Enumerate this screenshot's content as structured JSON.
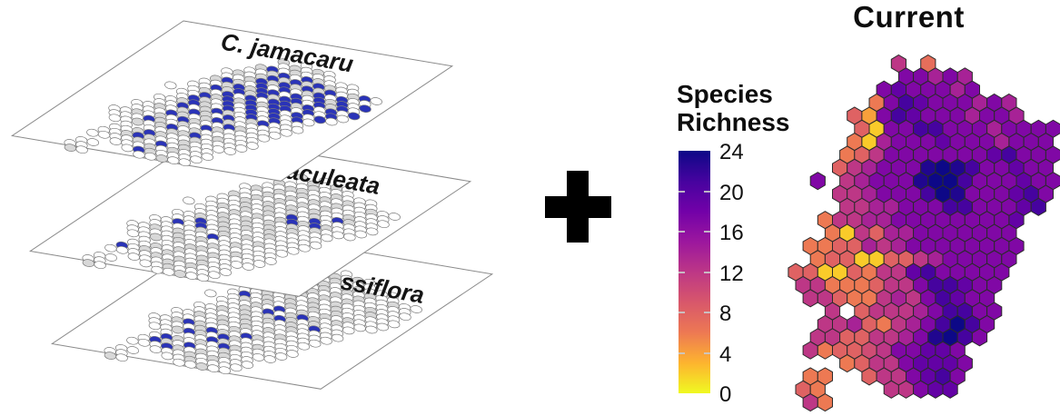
{
  "background_color": "#ffffff",
  "title_current": "Current",
  "plus_symbol": "+",
  "legend": {
    "title_line1": "Species",
    "title_line2": "Richness",
    "ticks": [
      "24",
      "20",
      "16",
      "12",
      "8",
      "4",
      "0"
    ]
  },
  "colormap": {
    "description": "plasma colormap: dark indigo = high richness (24), yellow = low (0)",
    "anchors": [
      [
        0.0,
        "#0d0887"
      ],
      [
        0.125,
        "#46039f"
      ],
      [
        0.25,
        "#7201a8"
      ],
      [
        0.375,
        "#9c179e"
      ],
      [
        0.5,
        "#bd3786"
      ],
      [
        0.625,
        "#d8576b"
      ],
      [
        0.75,
        "#ed7953"
      ],
      [
        0.875,
        "#fdb42f"
      ],
      [
        1.0,
        "#f0f921"
      ]
    ]
  },
  "left_stack": {
    "colors": {
      "occurrence": "#2a33b8",
      "cell_white": "#ffffff",
      "cell_gray": "#d8d8d8",
      "cell_stroke": "#7a7a7a",
      "panel_fill": "#ffffff",
      "panel_stroke": "#8a8a8a"
    },
    "gray_cells": [
      [
        0,
        7
      ],
      [
        1,
        8
      ],
      [
        1,
        10
      ],
      [
        2,
        6
      ],
      [
        2,
        9
      ],
      [
        3,
        7
      ],
      [
        3,
        8
      ],
      [
        3,
        11
      ],
      [
        4,
        5
      ],
      [
        4,
        7
      ],
      [
        4,
        9
      ],
      [
        4,
        11
      ],
      [
        4,
        13
      ],
      [
        5,
        6
      ],
      [
        5,
        8
      ],
      [
        5,
        10
      ],
      [
        5,
        12
      ],
      [
        5,
        15
      ],
      [
        6,
        4
      ],
      [
        6,
        6
      ],
      [
        6,
        8
      ],
      [
        6,
        10
      ],
      [
        6,
        12
      ],
      [
        7,
        5
      ],
      [
        7,
        7
      ],
      [
        7,
        9
      ],
      [
        7,
        11
      ],
      [
        7,
        14
      ],
      [
        8,
        6
      ],
      [
        8,
        8
      ],
      [
        8,
        10
      ],
      [
        8,
        12
      ],
      [
        8,
        15
      ],
      [
        9,
        4
      ],
      [
        9,
        6
      ],
      [
        9,
        8
      ],
      [
        9,
        10
      ],
      [
        9,
        12
      ],
      [
        10,
        6
      ],
      [
        10,
        8
      ],
      [
        10,
        10
      ],
      [
        10,
        12
      ],
      [
        10,
        14
      ],
      [
        11,
        5
      ],
      [
        11,
        7
      ],
      [
        11,
        9
      ],
      [
        11,
        11
      ],
      [
        11,
        13
      ],
      [
        12,
        4
      ],
      [
        12,
        6
      ],
      [
        12,
        8
      ],
      [
        12,
        10
      ],
      [
        12,
        12
      ],
      [
        13,
        6
      ],
      [
        13,
        8
      ],
      [
        13,
        10
      ],
      [
        14,
        3
      ],
      [
        14,
        5
      ],
      [
        14,
        7
      ],
      [
        14,
        11
      ],
      [
        15,
        5
      ],
      [
        15,
        7
      ],
      [
        15,
        9
      ],
      [
        16,
        2
      ],
      [
        16,
        4
      ],
      [
        16,
        7
      ],
      [
        16,
        11
      ],
      [
        17,
        4
      ],
      [
        17,
        6
      ],
      [
        17,
        9
      ],
      [
        18,
        3
      ],
      [
        18,
        5
      ],
      [
        18,
        8
      ],
      [
        19,
        6
      ],
      [
        19,
        7
      ],
      [
        19,
        10
      ],
      [
        20,
        4
      ],
      [
        20,
        6
      ],
      [
        20,
        9
      ],
      [
        21,
        3
      ],
      [
        21,
        5
      ],
      [
        21,
        8
      ],
      [
        22,
        5
      ],
      [
        22,
        7
      ],
      [
        22,
        9
      ],
      [
        23,
        6
      ],
      [
        23,
        8
      ],
      [
        24,
        7
      ],
      [
        25,
        8
      ],
      [
        26,
        1
      ]
    ],
    "panels": [
      {
        "label": "C. jamacaru",
        "blue_cells": [
          [
            2,
            7
          ],
          [
            3,
            8
          ],
          [
            3,
            10
          ],
          [
            4,
            8
          ],
          [
            4,
            10
          ],
          [
            4,
            12
          ],
          [
            5,
            7
          ],
          [
            5,
            9
          ],
          [
            5,
            11
          ],
          [
            5,
            13
          ],
          [
            5,
            16
          ],
          [
            6,
            5
          ],
          [
            6,
            8
          ],
          [
            6,
            10
          ],
          [
            6,
            13
          ],
          [
            6,
            15
          ],
          [
            7,
            6
          ],
          [
            7,
            8
          ],
          [
            7,
            9
          ],
          [
            7,
            11
          ],
          [
            7,
            13
          ],
          [
            7,
            15
          ],
          [
            7,
            17
          ],
          [
            8,
            5
          ],
          [
            8,
            7
          ],
          [
            8,
            9
          ],
          [
            8,
            11
          ],
          [
            8,
            12
          ],
          [
            8,
            14
          ],
          [
            8,
            16
          ],
          [
            9,
            6
          ],
          [
            9,
            8
          ],
          [
            9,
            10
          ],
          [
            9,
            11
          ],
          [
            9,
            13
          ],
          [
            9,
            15
          ],
          [
            9,
            17
          ],
          [
            10,
            5
          ],
          [
            10,
            7
          ],
          [
            10,
            9
          ],
          [
            10,
            11
          ],
          [
            10,
            12
          ],
          [
            10,
            14
          ],
          [
            10,
            16
          ],
          [
            11,
            4
          ],
          [
            11,
            7
          ],
          [
            11,
            9
          ],
          [
            11,
            11
          ],
          [
            11,
            13
          ],
          [
            11,
            15
          ],
          [
            12,
            5
          ],
          [
            12,
            8
          ],
          [
            12,
            10
          ],
          [
            12,
            12
          ],
          [
            12,
            14
          ],
          [
            13,
            4
          ],
          [
            13,
            7
          ],
          [
            13,
            10
          ],
          [
            13,
            12
          ],
          [
            14,
            6
          ],
          [
            14,
            9
          ],
          [
            14,
            12
          ],
          [
            15,
            4
          ],
          [
            15,
            8
          ],
          [
            16,
            6
          ],
          [
            16,
            10
          ],
          [
            17,
            3
          ],
          [
            17,
            8
          ],
          [
            18,
            6
          ],
          [
            19,
            8
          ],
          [
            20,
            5
          ],
          [
            21,
            4
          ],
          [
            22,
            7
          ],
          [
            24,
            6
          ]
        ]
      },
      {
        "label": "aculeata",
        "blue_cells": [
          [
            8,
            14
          ],
          [
            9,
            10
          ],
          [
            9,
            12
          ],
          [
            10,
            11
          ],
          [
            10,
            13
          ],
          [
            13,
            4
          ],
          [
            14,
            3
          ],
          [
            14,
            5
          ],
          [
            16,
            7
          ],
          [
            21,
            1
          ]
        ]
      },
      {
        "label": "ssiflora",
        "blue_cells": [
          [
            8,
            4
          ],
          [
            10,
            8
          ],
          [
            11,
            7
          ],
          [
            11,
            10
          ],
          [
            12,
            9
          ],
          [
            13,
            12
          ],
          [
            16,
            3
          ],
          [
            17,
            5
          ],
          [
            17,
            8
          ],
          [
            18,
            4
          ],
          [
            18,
            7
          ],
          [
            19,
            6
          ],
          [
            20,
            3
          ],
          [
            20,
            8
          ],
          [
            21,
            2
          ],
          [
            21,
            5
          ],
          [
            22,
            4
          ]
        ]
      }
    ]
  },
  "chart_data": {
    "type": "heatmap",
    "title": "Current",
    "legend_title": "Species Richness",
    "cell_shape": "hexagon",
    "value_range": [
      0,
      24
    ],
    "colorbar_ticks": [
      24,
      20,
      16,
      12,
      8,
      4,
      0
    ],
    "hex_stroke": "#2b2b2b",
    "encoding": "grid rows top-to-bottom; '.' = no cell; letters a-y = species richness 0-24",
    "rows": [
      ".......m.h.........",
      ".......rroro.......",
      "......rtrrror......",
      ".....grvtrrroro....",
      "....iervtrrrorro...",
      "....icrrvvrrrorrrr.",
      "....gcorrrtrrrorrr.",
      "...gimrrrrrrrtvrrr.",
      "...imorrrxyxvrrtrr.",
      ".r.morrrxyyvrrrtrr.",
      "...mmorrrvyxrrrtvr.",
      "...mmoorrrvvrrrtv..",
      "..gmmoorrrrrrrrt...",
      "..gcmioorrrrrrr....",
      ".ggiiomorrrrrrrr...",
      ".giicciimorrrrr....",
      "iiccigmmtvrrrrr....",
      "mmgggimmrvvtrr.....",
      ".mmiggmomrvtrr.....",
      "..m.immmorvvrr.....",
      "..mmoigmorvyvr.....",
      ".mmiimmorxyvr......",
      ".mgiikmrrttr.......",
      "...gimmrtttr.......",
      ".gg..immrtvr.......",
      "ig....mmrtt........",
      ".mg................"
    ]
  }
}
